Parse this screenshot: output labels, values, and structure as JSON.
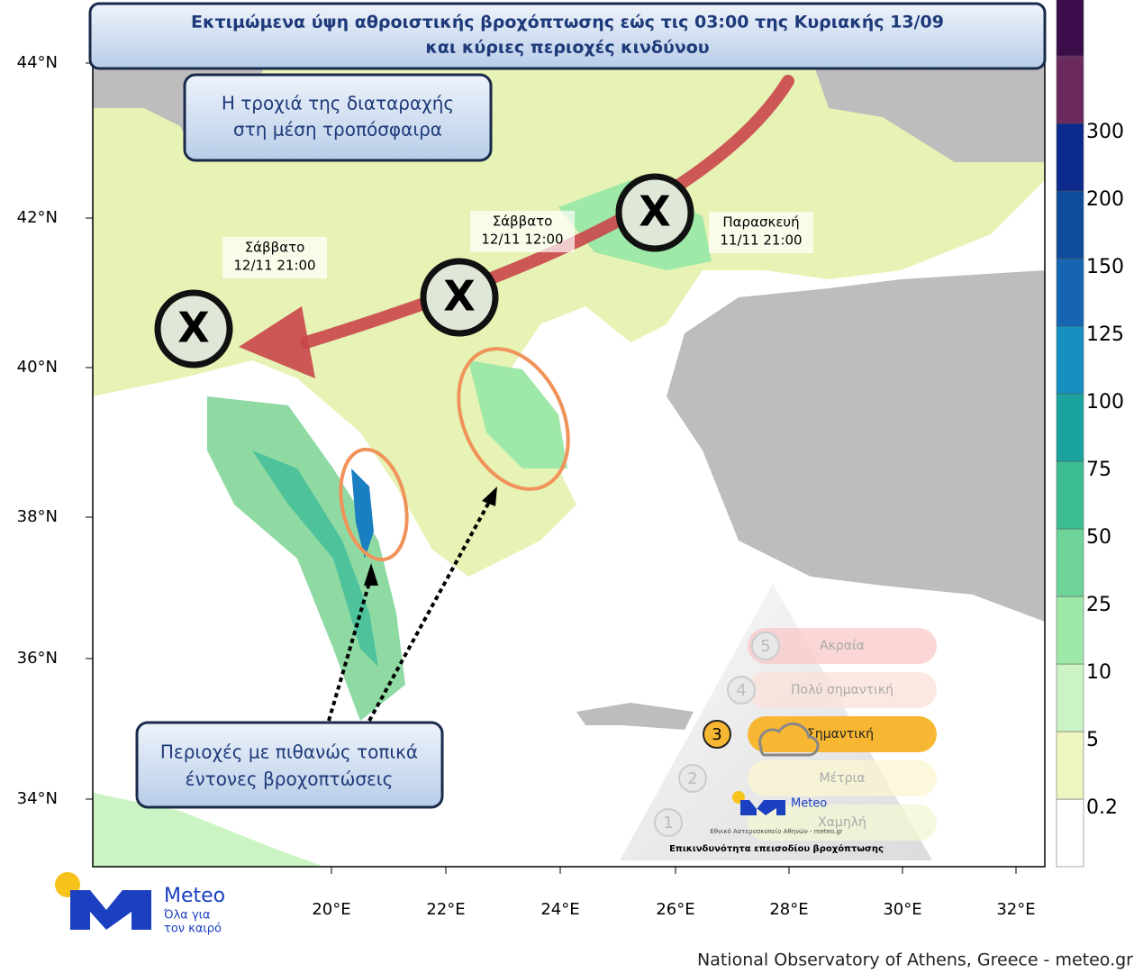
{
  "title": [
    "Εκτιμώμενα ύψη αθροιστικής βροχόπτωσης εώς τις 03:00 της Κυριακής 13/09",
    "και κύριες περιοχές κινδύνου"
  ],
  "track_box": [
    "Η τροχιά της διαταραχής",
    "στη μέση τροπόσφαιρα"
  ],
  "markers": [
    {
      "symbol": "X",
      "day": "Σάββατο",
      "time": "12/11 21:00"
    },
    {
      "symbol": "X",
      "day": "Σάββατο",
      "time": "12/11 12:00"
    },
    {
      "symbol": "X",
      "day": "Παρασκευή",
      "time": "11/11 21:00"
    }
  ],
  "callout": [
    "Περιοχές με πιθανώς τοπικά",
    "έντονες βροχοπτώσεις"
  ],
  "lat_labels": [
    "44°N",
    "42°N",
    "40°N",
    "38°N",
    "36°N",
    "34°N"
  ],
  "lon_labels": [
    "20°E",
    "22°E",
    "24°E",
    "26°E",
    "28°E",
    "30°E",
    "32°E"
  ],
  "colorbar": {
    "levels": [
      0.2,
      5,
      10,
      25,
      50,
      75,
      100,
      125,
      150,
      200,
      300
    ],
    "colors": [
      "#ffffff",
      "#eef5c0",
      "#ccf3c4",
      "#9ee8a8",
      "#6fd49a",
      "#3dbd94",
      "#1aa3a0",
      "#1690c0",
      "#1565b0",
      "#0f4c9a",
      "#0b2a8c",
      "#6b2a5e",
      "#3a0c4a"
    ]
  },
  "risk": {
    "levels": [
      {
        "n": "5",
        "label": "Ακραία",
        "color": "#f8c8c8"
      },
      {
        "n": "4",
        "label": "Πολύ σημαντική",
        "color": "#fbe0d8"
      },
      {
        "n": "3",
        "label": "Σημαντική",
        "color": "#f7b733"
      },
      {
        "n": "2",
        "label": "Μέτρια",
        "color": "#fbf6d0"
      },
      {
        "n": "1",
        "label": "Χαμηλή",
        "color": "#f3f7d2"
      }
    ],
    "caption": "Επικινδυνότητα επεισοδίου βροχόπτωσης",
    "org": "Εθνικό Αστεροσκοπείο Αθηνών - meteo.gr"
  },
  "logo": {
    "name": "Meteo",
    "slogan": [
      "Όλα για",
      "τον καιρό"
    ]
  },
  "footer": "National Observatory of Athens, Greece - meteo.gr"
}
